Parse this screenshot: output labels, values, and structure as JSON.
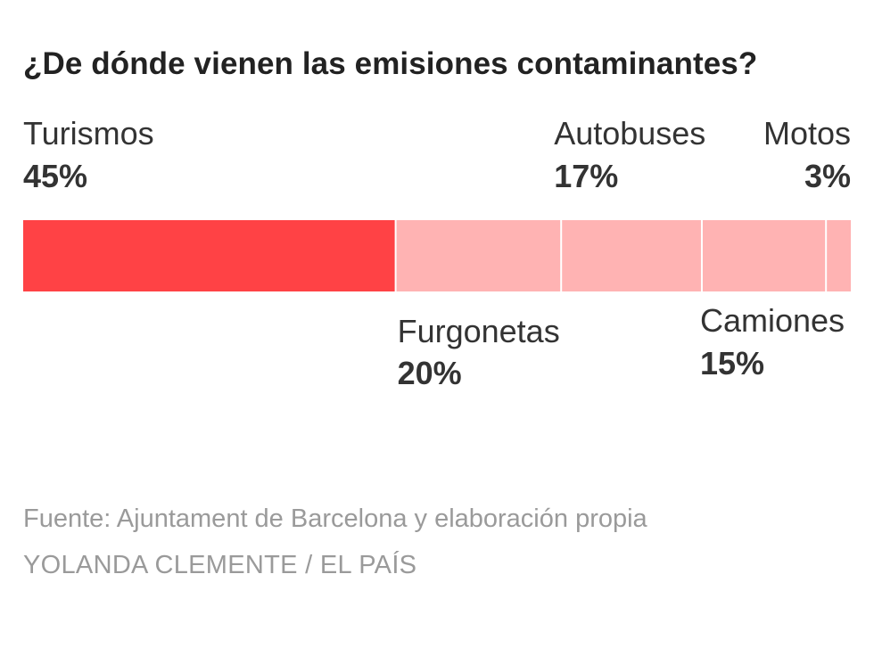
{
  "chart_data": {
    "type": "bar",
    "title": "¿De dónde vienen las emisiones contaminantes?",
    "orientation": "horizontal-stacked",
    "categories": [
      "Turismos",
      "Furgonetas",
      "Autobuses",
      "Camiones",
      "Motos"
    ],
    "values": [
      45,
      20,
      17,
      15,
      3
    ],
    "value_labels": [
      "45%",
      "20%",
      "17%",
      "15%",
      "3%"
    ],
    "label_positions": [
      "above",
      "below",
      "above",
      "below",
      "above"
    ],
    "colors": [
      "#ff4245",
      "#ffb3b3",
      "#ffb3b3",
      "#ffb3b3",
      "#ffb3b3"
    ],
    "highlight_color": "#ff4245",
    "muted_color": "#ffb3b3",
    "xlim": [
      0,
      100
    ],
    "grid": false,
    "legend": false
  },
  "footer": {
    "source": "Fuente: Ajuntament de Barcelona y elaboración propia",
    "credit": "YOLANDA CLEMENTE / EL PAÍS"
  }
}
